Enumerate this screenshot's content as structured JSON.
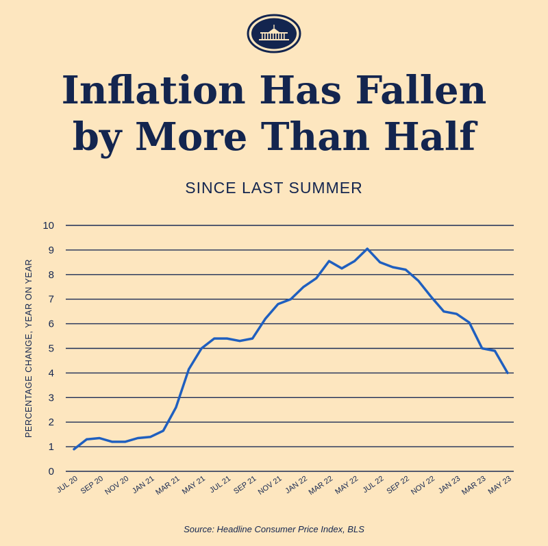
{
  "header": {
    "title_line1": "Inflation Has Fallen",
    "title_line2": "by More Than Half",
    "subtitle": "SINCE LAST SUMMER"
  },
  "footer": {
    "source": "Source: Headline Consumer Price Index, BLS"
  },
  "colors": {
    "background": "#fde6bf",
    "text": "#13254f",
    "line": "#1f5fbf",
    "grid": "#1c2c55"
  },
  "chart_data": {
    "type": "line",
    "ylabel": "PERCENTAGE CHANGE, YEAR ON YEAR",
    "xlabel": "",
    "ylim": [
      0,
      10
    ],
    "yticks": [
      0,
      1,
      2,
      3,
      4,
      5,
      6,
      7,
      8,
      9,
      10
    ],
    "grid": true,
    "x": [
      "JUL 20",
      "AUG 20",
      "SEP 20",
      "OCT 20",
      "NOV 20",
      "DEC 20",
      "JAN 21",
      "FEB 21",
      "MAR 21",
      "APR 21",
      "MAY 21",
      "JUN 21",
      "JUL 21",
      "AUG 21",
      "SEP 21",
      "OCT 21",
      "NOV 21",
      "DEC 21",
      "JAN 22",
      "FEB 22",
      "MAR 22",
      "APR 22",
      "MAY 22",
      "JUN 22",
      "JUL 22",
      "AUG 22",
      "SEP 22",
      "OCT 22",
      "NOV 22",
      "DEC 22",
      "JAN 23",
      "FEB 23",
      "MAR 23",
      "APR 23",
      "MAY 23"
    ],
    "xtick_labels": [
      "JUL 20",
      "SEP 20",
      "NOV 20",
      "JAN 21",
      "MAR 21",
      "MAY 21",
      "JUL 21",
      "SEP 21",
      "NOV 21",
      "JAN 22",
      "MAR 22",
      "MAY 22",
      "JUL 22",
      "SEP 22",
      "NOV 22",
      "JAN 23",
      "MAR 23",
      "MAY 23"
    ],
    "series": [
      {
        "values": [
          0.9,
          1.3,
          1.35,
          1.2,
          1.2,
          1.35,
          1.4,
          1.65,
          2.6,
          4.15,
          5.0,
          5.4,
          5.4,
          5.3,
          5.4,
          6.2,
          6.8,
          7.0,
          7.5,
          7.85,
          8.55,
          8.25,
          8.55,
          9.05,
          8.5,
          8.3,
          8.2,
          7.75,
          7.1,
          6.5,
          6.4,
          6.05,
          5.0,
          4.9,
          4.0
        ]
      }
    ]
  }
}
